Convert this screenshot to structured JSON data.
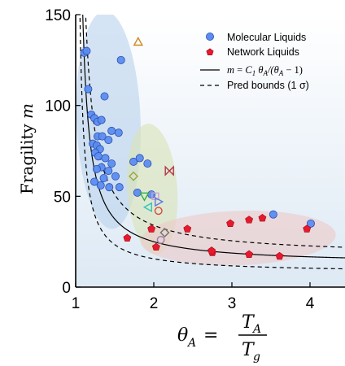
{
  "chart_data": {
    "type": "scatter",
    "xlabel": {
      "lhs": "θ",
      "lhs_sub": "A",
      "eq": "=",
      "num": "T",
      "num_sub": "A",
      "den": "T",
      "den_sub": "g"
    },
    "ylabel": {
      "text": "Fragility ",
      "var": "m"
    },
    "xlim": [
      1,
      4.5
    ],
    "ylim": [
      0,
      150
    ],
    "xticks": [
      1,
      2,
      3,
      4
    ],
    "yticks": [
      0,
      50,
      100,
      150
    ],
    "xtick_labels": [
      "1",
      "2",
      "3",
      "4"
    ],
    "ytick_labels": [
      "0",
      "50",
      "100",
      "150"
    ],
    "colors": {
      "molecular": "#5b8df0",
      "network": "#e8192c",
      "fit": "#000000",
      "bounds": "#000000"
    },
    "legend": {
      "position": "top-right",
      "molecular": "Molecular Liquids",
      "network": "Network Liquids",
      "fit": {
        "m": "m",
        "eq": " = ",
        "c": "C",
        "c_sub": "1",
        "theta": " θ",
        "theta_sub": "A",
        "rest1": "/(θ",
        "rest_sub": "A",
        "rest2": " − 1)"
      },
      "bounds": "Pred bounds (1 σ)"
    },
    "fit_C1": 12.5,
    "bounds_C1": [
      7.8,
      17.0
    ],
    "ellipses": [
      {
        "cx": 1.42,
        "cy": 92,
        "rx": 0.41,
        "ry": 60,
        "rot": -2,
        "color": "#b9d2ec"
      },
      {
        "cx": 1.98,
        "cy": 54,
        "rx": 0.32,
        "ry": 36,
        "rot": -4,
        "color": "#d9e3b6"
      },
      {
        "cx": 3.08,
        "cy": 27,
        "rx": 1.25,
        "ry": 15,
        "rot": -2,
        "color": "#edc9c8"
      }
    ],
    "series": [
      {
        "name": "Molecular Liquids",
        "marker": "circle",
        "points": [
          [
            1.11,
            129
          ],
          [
            1.14,
            130
          ],
          [
            1.58,
            125
          ],
          [
            1.16,
            109
          ],
          [
            1.37,
            105
          ],
          [
            1.2,
            95
          ],
          [
            1.24,
            93
          ],
          [
            1.28,
            91
          ],
          [
            1.33,
            92
          ],
          [
            1.46,
            86
          ],
          [
            1.55,
            85
          ],
          [
            1.28,
            83
          ],
          [
            1.34,
            83
          ],
          [
            1.42,
            81
          ],
          [
            1.22,
            79
          ],
          [
            1.27,
            78
          ],
          [
            1.31,
            76
          ],
          [
            1.25,
            74
          ],
          [
            1.29,
            72
          ],
          [
            1.38,
            71
          ],
          [
            1.46,
            68
          ],
          [
            1.33,
            66
          ],
          [
            1.27,
            65
          ],
          [
            1.42,
            64
          ],
          [
            1.51,
            61
          ],
          [
            1.36,
            60
          ],
          [
            1.24,
            58
          ],
          [
            1.32,
            56
          ],
          [
            1.43,
            55
          ],
          [
            1.56,
            55
          ],
          [
            1.74,
            69
          ],
          [
            1.82,
            71
          ],
          [
            1.92,
            68
          ],
          [
            1.79,
            52
          ],
          [
            1.97,
            51
          ],
          [
            3.53,
            40
          ],
          [
            4.01,
            35
          ]
        ]
      },
      {
        "name": "Network Liquids",
        "marker": "pentagon",
        "points": [
          [
            1.66,
            27
          ],
          [
            1.97,
            32
          ],
          [
            2.03,
            22
          ],
          [
            2.43,
            32
          ],
          [
            2.75,
            19
          ],
          [
            2.98,
            35
          ],
          [
            3.22,
            37
          ],
          [
            3.22,
            18
          ],
          [
            3.39,
            38
          ],
          [
            3.61,
            17
          ],
          [
            3.96,
            32
          ],
          [
            2.74,
            20
          ]
        ]
      },
      {
        "name": "",
        "marker": "special",
        "points": [
          {
            "x": 1.8,
            "y": 135,
            "shape": "triangle-up",
            "color": "#cc8a1f"
          },
          {
            "x": 1.74,
            "y": 61,
            "shape": "diamond",
            "color": "#9aa83a"
          },
          {
            "x": 2.2,
            "y": 64,
            "shape": "bowtie",
            "color": "#b5364b"
          },
          {
            "x": 1.88,
            "y": 50,
            "shape": "triangle-down",
            "color": "#2fae4a"
          },
          {
            "x": 2.02,
            "y": 50,
            "shape": "square",
            "color": "#c9a3d8"
          },
          {
            "x": 2.06,
            "y": 47,
            "shape": "triangle-right",
            "color": "#5e78e0"
          },
          {
            "x": 1.93,
            "y": 44,
            "shape": "triangle-left",
            "color": "#2fc5b9"
          },
          {
            "x": 2.06,
            "y": 42,
            "shape": "circle",
            "color": "#d9483c"
          },
          {
            "x": 2.14,
            "y": 30,
            "shape": "diamond",
            "color": "#707070"
          },
          {
            "x": 2.09,
            "y": 26,
            "shape": "circle",
            "color": "#9c79b8"
          }
        ]
      }
    ]
  }
}
